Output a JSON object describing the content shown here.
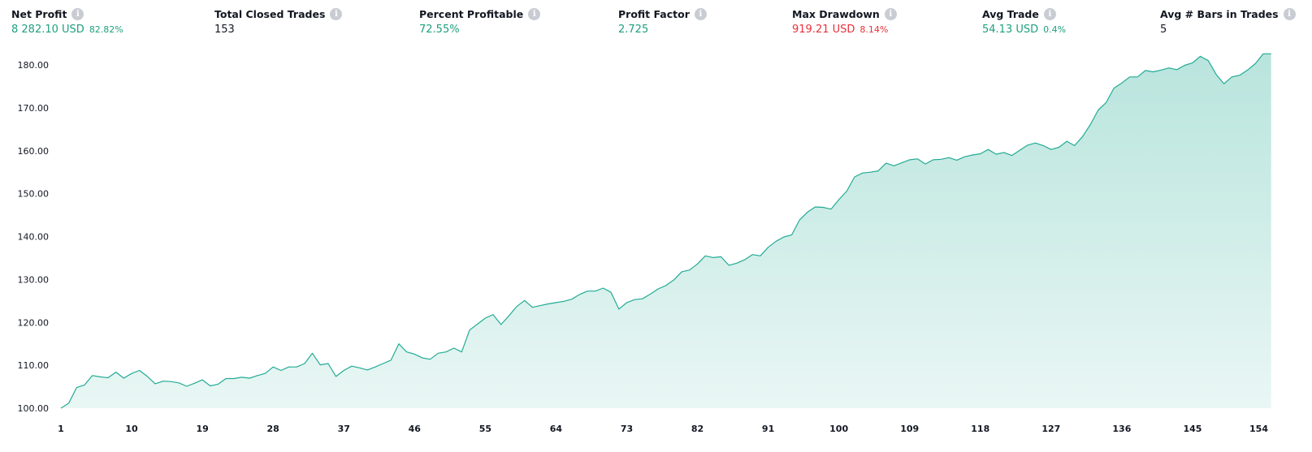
{
  "metrics": [
    {
      "label": "Net Profit",
      "value": "8 282.10 USD",
      "pct": "82.82%",
      "color": "#1fa07d"
    },
    {
      "label": "Total Closed Trades",
      "value": "153",
      "pct": "",
      "color": "#131722"
    },
    {
      "label": "Percent Profitable",
      "value": "72.55%",
      "pct": "",
      "color": "#1fa07d"
    },
    {
      "label": "Profit Factor",
      "value": "2.725",
      "pct": "",
      "color": "#1fa07d"
    },
    {
      "label": "Max Drawdown",
      "value": "919.21 USD",
      "pct": "8.14%",
      "color": "#e8303a"
    },
    {
      "label": "Avg Trade",
      "value": "54.13 USD",
      "pct": "0.4%",
      "color": "#1fa07d"
    },
    {
      "label": "Avg # Bars in Trades",
      "value": "5",
      "pct": "",
      "color": "#131722"
    }
  ],
  "chart_data": {
    "type": "area",
    "title": "",
    "xlabel": "",
    "ylabel": "",
    "xlim": [
      1,
      154
    ],
    "ylim": [
      100,
      180
    ],
    "x_ticks": [
      1,
      10,
      19,
      28,
      37,
      46,
      55,
      64,
      73,
      82,
      91,
      100,
      109,
      118,
      127,
      136,
      145,
      154
    ],
    "y_ticks": [
      "100.00",
      "110.00",
      "120.00",
      "130.00",
      "140.00",
      "150.00",
      "160.00",
      "170.00",
      "180.00"
    ],
    "grid": false,
    "line_color": "#22ab94",
    "fill_color": "#22ab94",
    "series": [
      {
        "values": [
          100.0,
          101.2,
          104.8,
          105.4,
          107.6,
          107.3,
          107.1,
          108.4,
          107.0,
          108.1,
          108.8,
          107.4,
          105.7,
          106.3,
          106.2,
          105.9,
          105.1,
          105.8,
          106.6,
          105.2,
          105.6,
          106.9,
          106.9,
          107.2,
          107.0,
          107.6,
          108.1,
          109.6,
          108.8,
          109.6,
          109.6,
          110.4,
          112.8,
          110.1,
          110.4,
          107.4,
          108.8,
          109.8,
          109.4,
          108.9,
          109.6,
          110.4,
          111.2,
          115.0,
          113.1,
          112.6,
          111.7,
          111.4,
          112.8,
          113.1,
          114.0,
          113.1,
          118.2,
          119.6,
          121.0,
          121.8,
          119.5,
          121.5,
          123.7,
          125.1,
          123.5,
          123.9,
          124.3,
          124.6,
          124.9,
          125.4,
          126.5,
          127.3,
          127.3,
          128.0,
          127.0,
          123.1,
          124.6,
          125.3,
          125.5,
          126.6,
          127.8,
          128.6,
          129.9,
          131.8,
          132.2,
          133.6,
          135.5,
          135.1,
          135.3,
          133.3,
          133.8,
          134.6,
          135.8,
          135.5,
          137.5,
          138.9,
          139.9,
          140.4,
          143.9,
          145.7,
          146.9,
          146.8,
          146.4,
          148.6,
          150.6,
          153.9,
          154.8,
          155.0,
          155.3,
          157.1,
          156.5,
          157.2,
          157.9,
          158.1,
          156.9,
          157.9,
          158.0,
          158.4,
          157.8,
          158.6,
          159.0,
          159.3,
          160.3,
          159.2,
          159.6,
          158.9,
          160.1,
          161.3,
          161.8,
          161.2,
          160.3,
          160.8,
          162.2,
          161.2,
          163.3,
          166.1,
          169.5,
          171.2,
          174.6,
          175.8,
          177.2,
          177.2,
          178.7,
          178.4,
          178.8,
          179.3,
          178.9,
          179.9,
          180.5,
          182.0,
          181.0,
          177.8,
          175.6,
          177.2,
          177.6,
          178.8,
          180.3,
          182.6,
          182.6
        ]
      }
    ]
  }
}
